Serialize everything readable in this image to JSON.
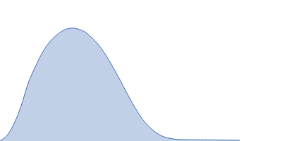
{
  "chart_data": {
    "type": "area",
    "x": [
      0,
      10,
      20,
      30,
      40,
      50,
      60,
      70,
      80,
      90,
      100,
      105,
      110,
      120,
      130,
      140,
      150,
      160,
      170,
      180,
      190,
      200,
      210,
      220,
      230,
      240,
      250,
      260,
      300,
      340
    ],
    "values": [
      0,
      4,
      12.5,
      25,
      41,
      52.5,
      62.5,
      70,
      75,
      78.5,
      80,
      80,
      79.5,
      77.5,
      73.5,
      68,
      61,
      52.5,
      43.5,
      34,
      25,
      17,
      11,
      6.5,
      3.5,
      2,
      1.25,
      1,
      0.75,
      0.5
    ],
    "color": "#3d6db5",
    "xlim": [
      0,
      400
    ],
    "ylim": [
      0,
      100
    ],
    "grid": false,
    "tick_labels": false
  }
}
